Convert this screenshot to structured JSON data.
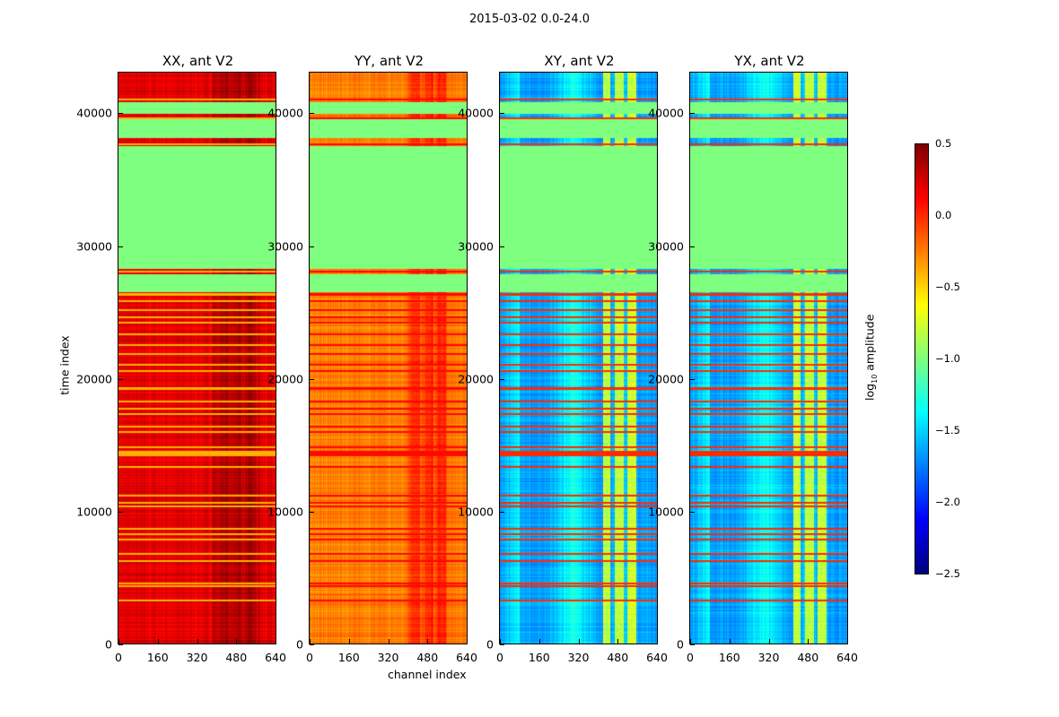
{
  "chart_data": {
    "type": "heatmap",
    "title": "2015-03-02 0.0-24.0",
    "xlabel": "channel index",
    "ylabel": "time index",
    "xlim": [
      0,
      640
    ],
    "ylim": [
      0,
      43000
    ],
    "xticks": [
      "0",
      "160",
      "320",
      "480",
      "640"
    ],
    "yticks": [
      "0",
      "10000",
      "20000",
      "30000",
      "40000"
    ],
    "colorbar": {
      "label_prefix": "log",
      "label_sub": "10",
      "label_suffix": " amplitude",
      "range": [
        -2.5,
        0.5
      ],
      "ticks": [
        "0.5",
        "0.0",
        "−0.5",
        "−1.0",
        "−1.5",
        "−2.0",
        "−2.5"
      ],
      "colormap": "jet"
    },
    "flagged_ranges": [
      [
        26500,
        27800
      ],
      [
        28200,
        37500
      ],
      [
        38100,
        39500
      ],
      [
        39900,
        40800
      ]
    ],
    "flag_value": -1.0,
    "rfi_lines": [
      3200,
      4300,
      4500,
      6200,
      6700,
      7800,
      8200,
      8600,
      10300,
      10600,
      11100,
      13300,
      14200,
      14400,
      14800,
      15900,
      16300,
      17300,
      17700,
      18200,
      19200,
      20500,
      21000,
      21800,
      22500,
      23300,
      24200,
      24600,
      25100,
      25800,
      26300,
      28000,
      37600,
      39600,
      41000
    ],
    "panels": [
      {
        "title": "XX, ant V2",
        "base": 0.05,
        "hot_channels": [
          380,
          580
        ],
        "hot_delta": 0.2,
        "line_value": -0.4
      },
      {
        "title": "YY, ant V2",
        "base": -0.4,
        "hot_channels": [
          400,
          560
        ],
        "hot_delta": 0.3,
        "line_value": 0.1
      },
      {
        "title": "XY, ant V2",
        "base": -1.8,
        "hot_channels": [
          420,
          560
        ],
        "hot_delta": 1.0,
        "line_value": 0.0
      },
      {
        "title": "YX, ant V2",
        "base": -1.8,
        "hot_channels": [
          420,
          560
        ],
        "hot_delta": 1.0,
        "line_value": 0.0
      }
    ]
  }
}
